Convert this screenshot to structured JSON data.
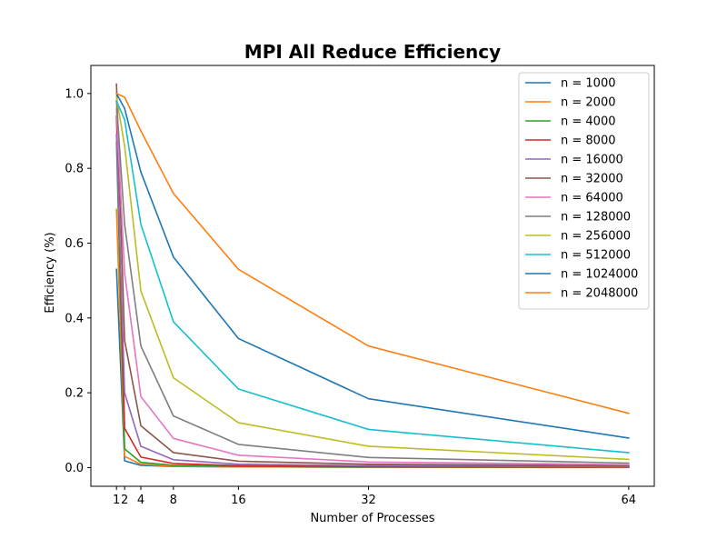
{
  "chart_data": {
    "type": "line",
    "title": "MPI All Reduce Efficiency",
    "xlabel": "Number of Processes",
    "ylabel": "Efficiency (%)",
    "x": [
      1,
      2,
      4,
      8,
      16,
      32,
      64
    ],
    "xticks": [
      "1",
      "2",
      "4",
      "8",
      "16",
      "32",
      "64"
    ],
    "yticks": [
      "0.0",
      "0.2",
      "0.4",
      "0.6",
      "0.8",
      "1.0"
    ],
    "xlim": [
      -2.15,
      67.15
    ],
    "ylim": [
      -0.05,
      1.075
    ],
    "grid": false,
    "legend_position": "top-right",
    "series": [
      {
        "name": "n = 1000",
        "color": "#1f77b4",
        "values": [
          0.53,
          0.018,
          0.006,
          0.003,
          0.002,
          0.001,
          0.0005
        ]
      },
      {
        "name": "n = 2000",
        "color": "#ff7f0e",
        "values": [
          0.69,
          0.03,
          0.009,
          0.004,
          0.002,
          0.001,
          0.0005
        ]
      },
      {
        "name": "n = 4000",
        "color": "#2ca02c",
        "values": [
          0.87,
          0.05,
          0.014,
          0.006,
          0.003,
          0.0015,
          0.0008
        ]
      },
      {
        "name": "n = 8000",
        "color": "#d62728",
        "values": [
          0.94,
          0.105,
          0.028,
          0.011,
          0.005,
          0.0025,
          0.0012
        ]
      },
      {
        "name": "n = 16000",
        "color": "#9467bd",
        "values": [
          0.89,
          0.2,
          0.057,
          0.021,
          0.009,
          0.005,
          0.0025
        ]
      },
      {
        "name": "n = 32000",
        "color": "#8c564b",
        "values": [
          1.025,
          0.34,
          0.112,
          0.04,
          0.017,
          0.009,
          0.005
        ]
      },
      {
        "name": "n = 64000",
        "color": "#e377c2",
        "values": [
          0.96,
          0.52,
          0.19,
          0.078,
          0.033,
          0.015,
          0.008
        ]
      },
      {
        "name": "n = 128000",
        "color": "#7f7f7f",
        "values": [
          0.98,
          0.65,
          0.325,
          0.138,
          0.062,
          0.027,
          0.012
        ]
      },
      {
        "name": "n = 256000",
        "color": "#bcbd22",
        "values": [
          0.99,
          0.86,
          0.472,
          0.24,
          0.12,
          0.057,
          0.022
        ]
      },
      {
        "name": "n = 512000",
        "color": "#17becf",
        "values": [
          0.98,
          0.93,
          0.65,
          0.39,
          0.21,
          0.102,
          0.04
        ]
      },
      {
        "name": "n = 1024000",
        "color": "#1f77b4",
        "values": [
          1.0,
          0.96,
          0.79,
          0.563,
          0.345,
          0.184,
          0.079
        ]
      },
      {
        "name": "n = 2048000",
        "color": "#ff7f0e",
        "values": [
          1.0,
          0.99,
          0.9,
          0.733,
          0.53,
          0.325,
          0.145
        ]
      }
    ]
  }
}
